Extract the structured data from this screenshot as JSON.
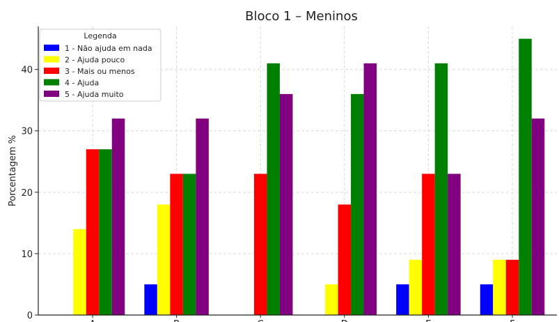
{
  "chart_data": {
    "type": "bar",
    "title": "Bloco 1 – Meninos",
    "xlabel": "",
    "ylabel": "Porcentagem %",
    "categories": [
      "A",
      "B",
      "C",
      "D",
      "E",
      "F"
    ],
    "ylim": [
      0,
      47
    ],
    "yticks": [
      0,
      10,
      20,
      30,
      40
    ],
    "grid": true,
    "legend_title": "Legenda",
    "legend_position": "top-left",
    "series": [
      {
        "name": "1 - Não ajuda em nada",
        "color": "#0000ff",
        "values": [
          0,
          5,
          0,
          0,
          5,
          5
        ]
      },
      {
        "name": "2 - Ajuda pouco",
        "color": "#ffff00",
        "values": [
          14,
          18,
          0,
          5,
          9,
          9
        ]
      },
      {
        "name": "3 - Mais ou menos",
        "color": "#ff0000",
        "values": [
          27,
          23,
          23,
          18,
          23,
          9
        ]
      },
      {
        "name": "4 - Ajuda",
        "color": "#008000",
        "values": [
          27,
          23,
          41,
          36,
          41,
          45
        ]
      },
      {
        "name": "5 - Ajuda muito",
        "color": "#800080",
        "values": [
          32,
          32,
          36,
          41,
          23,
          32
        ]
      }
    ]
  }
}
